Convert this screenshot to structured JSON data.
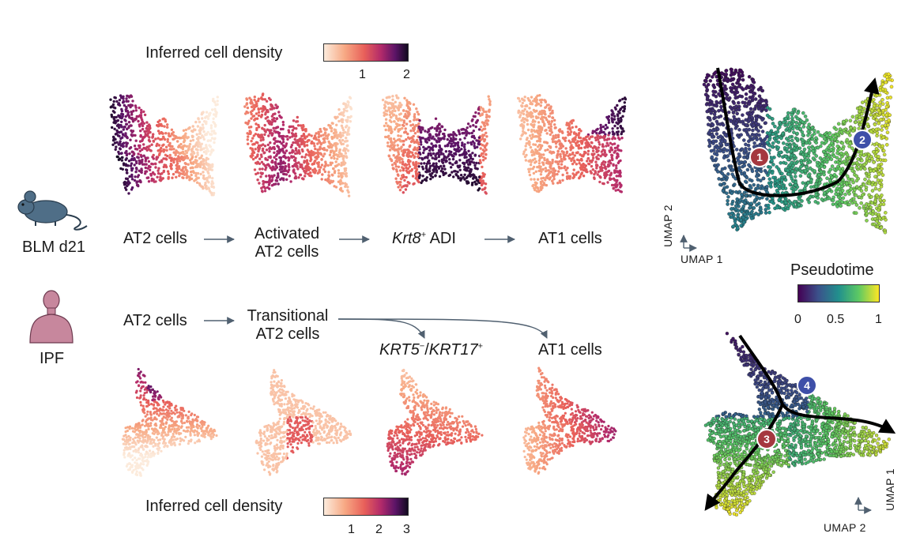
{
  "density_top": {
    "label": "Inferred cell density",
    "ticks": [
      "1",
      "2"
    ]
  },
  "density_bottom": {
    "label": "Inferred cell density",
    "ticks": [
      "1",
      "2",
      "3"
    ]
  },
  "pseudotime": {
    "label": "Pseudotime",
    "ticks": [
      "0",
      "0.5",
      "1"
    ]
  },
  "mouse": {
    "label": "BLM d21"
  },
  "human": {
    "label": "IPF"
  },
  "mouse_flow": {
    "step1": "AT2 cells",
    "step2_line1": "Activated",
    "step2_line2": "AT2 cells",
    "step3_gene": "Krt8",
    "step3_sup": "+",
    "step3_rest": " ADI",
    "step4": "AT1 cells"
  },
  "human_flow": {
    "step1": "AT2 cells",
    "step2_line1": "Transitional",
    "step2_line2": "AT2 cells",
    "branch_a_gene1": "KRT5",
    "branch_a_sup1": "−",
    "branch_a_sep": "/",
    "branch_a_gene2": "KRT17",
    "branch_a_sup2": "+",
    "branch_b": "AT1 cells"
  },
  "umap_top": {
    "x_axis": "UMAP 1",
    "y_axis": "UMAP 2",
    "badges": [
      "1",
      "2"
    ]
  },
  "umap_bottom": {
    "x_axis": "UMAP 2",
    "y_axis": "UMAP 1",
    "badges": [
      "3",
      "4"
    ]
  },
  "colors": {
    "magma_low": "#fcebdc",
    "magma_mid": "#e8605a",
    "magma_high": "#1a0a28",
    "viridis_low": "#440154",
    "viridis_mid": "#21908d",
    "viridis_high": "#fde725",
    "icon_mouse": "#4f6e87",
    "icon_human": "#c7879d",
    "badge_red": "#a5383f",
    "badge_blue": "#3e4fa8",
    "arrow": "#506070"
  }
}
